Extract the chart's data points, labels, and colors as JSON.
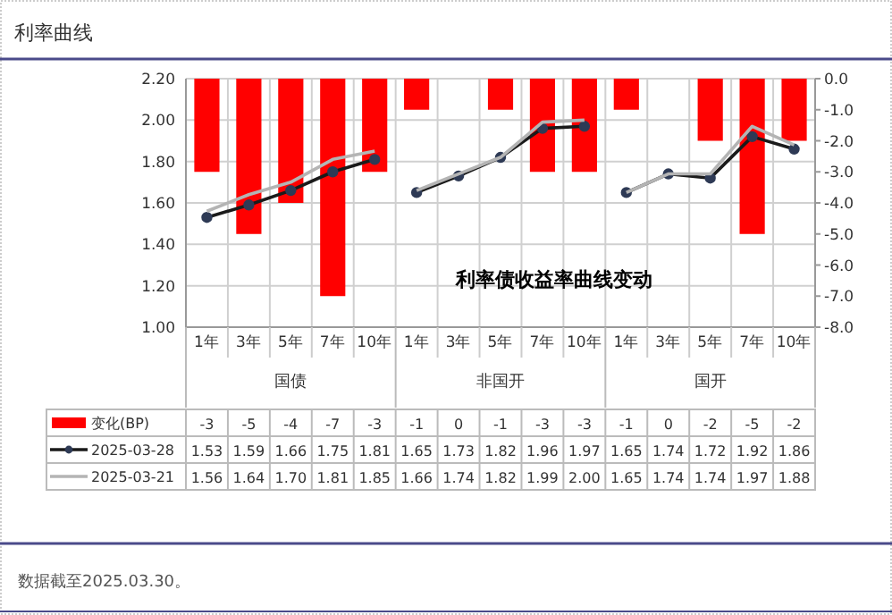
{
  "chart_data": {
    "type": "bar",
    "title": "利率曲线",
    "categories": [
      "1年",
      "3年",
      "5年",
      "7年",
      "10年",
      "1年",
      "3年",
      "5年",
      "7年",
      "10年",
      "1年",
      "3年",
      "5年",
      "7年",
      "10年"
    ],
    "series": [
      {
        "name": "变化(BP)",
        "axis": "y2",
        "color": "#ff0000",
        "values": [
          -3,
          -5,
          -4,
          -7,
          -3,
          -1,
          0,
          -1,
          -3,
          -3,
          -1,
          0,
          -2,
          -5,
          -2
        ],
        "value_labels": [
          "-3",
          "-5",
          "-4",
          "-7",
          "-3",
          "-1",
          "0",
          "-1",
          "-3",
          "-3",
          "-1",
          "0",
          "-2",
          "-5",
          "-2"
        ]
      },
      {
        "name": "2025-03-28",
        "type": "line",
        "color": "#1a1a1a",
        "marker": "circle",
        "values": [
          1.53,
          1.59,
          1.66,
          1.75,
          1.81,
          1.65,
          1.73,
          1.82,
          1.96,
          1.97,
          1.65,
          1.74,
          1.72,
          1.92,
          1.86
        ],
        "value_labels": [
          "1.53",
          "1.59",
          "1.66",
          "1.75",
          "1.81",
          "1.65",
          "1.73",
          "1.82",
          "1.96",
          "1.97",
          "1.65",
          "1.74",
          "1.72",
          "1.92",
          "1.86"
        ]
      },
      {
        "name": "2025-03-21",
        "type": "line",
        "color": "#b4b4b4",
        "values": [
          1.56,
          1.64,
          1.7,
          1.81,
          1.85,
          1.66,
          1.74,
          1.82,
          1.99,
          2.0,
          1.65,
          1.74,
          1.74,
          1.97,
          1.88
        ],
        "value_labels": [
          "1.56",
          "1.64",
          "1.70",
          "1.81",
          "1.85",
          "1.66",
          "1.74",
          "1.82",
          "1.99",
          "2.00",
          "1.65",
          "1.74",
          "1.74",
          "1.97",
          "1.88"
        ]
      }
    ],
    "ylim": [
      1.0,
      2.2
    ],
    "yticks": [
      {
        "value": 1.0,
        "label": "1.00"
      },
      {
        "value": 1.2,
        "label": "1.20"
      },
      {
        "value": 1.4,
        "label": "1.40"
      },
      {
        "value": 1.6,
        "label": "1.60"
      },
      {
        "value": 1.8,
        "label": "1.80"
      },
      {
        "value": 2.0,
        "label": "2.00"
      },
      {
        "value": 2.2,
        "label": "2.20"
      }
    ],
    "y2lim": [
      -8,
      0
    ],
    "y2ticks": [
      {
        "value": 0,
        "label": "0.0"
      },
      {
        "value": -1,
        "label": "-1.0"
      },
      {
        "value": -2,
        "label": "-2.0"
      },
      {
        "value": -3,
        "label": "-3.0"
      },
      {
        "value": -4,
        "label": "-4.0"
      },
      {
        "value": -5,
        "label": "-5.0"
      },
      {
        "value": -6,
        "label": "-6.0"
      },
      {
        "value": -7,
        "label": "-7.0"
      },
      {
        "value": -8,
        "label": "-8.0"
      }
    ],
    "grid": true,
    "legend": "bottom",
    "annotations": [
      "利率债收益率曲线变动",
      "国债",
      "非国开",
      "国开",
      "数据截至2025.03.30。"
    ]
  }
}
